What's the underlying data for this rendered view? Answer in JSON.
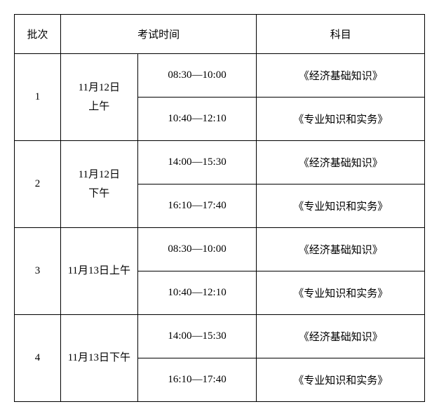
{
  "table": {
    "headers": {
      "batch": "批次",
      "exam_time": "考试时间",
      "subject": "科目"
    },
    "batches": [
      {
        "num": "1",
        "date": "11月12日\n上午",
        "slots": [
          {
            "time": "08:30—10:00",
            "subject": "《经济基础知识》"
          },
          {
            "time": "10:40—12:10",
            "subject": "《专业知识和实务》"
          }
        ]
      },
      {
        "num": "2",
        "date": "11月12日\n下午",
        "slots": [
          {
            "time": "14:00—15:30",
            "subject": "《经济基础知识》"
          },
          {
            "time": "16:10—17:40",
            "subject": "《专业知识和实务》"
          }
        ]
      },
      {
        "num": "3",
        "date": "11月13日上午",
        "slots": [
          {
            "time": "08:30—10:00",
            "subject": "《经济基础知识》"
          },
          {
            "time": "10:40—12:10",
            "subject": "《专业知识和实务》"
          }
        ]
      },
      {
        "num": "4",
        "date": "11月13日下午",
        "slots": [
          {
            "time": "14:00—15:30",
            "subject": "《经济基础知识》"
          },
          {
            "time": "16:10—17:40",
            "subject": "《专业知识和实务》"
          }
        ]
      }
    ],
    "styling": {
      "border_color": "#000000",
      "text_color": "#000000",
      "background_color": "#ffffff",
      "font_size": 15,
      "font_family": "SimSun",
      "header_row_height": 56,
      "data_row_height": 62,
      "col_widths": {
        "batch": 66,
        "date": 110,
        "time": 170,
        "subject": 240
      }
    }
  }
}
